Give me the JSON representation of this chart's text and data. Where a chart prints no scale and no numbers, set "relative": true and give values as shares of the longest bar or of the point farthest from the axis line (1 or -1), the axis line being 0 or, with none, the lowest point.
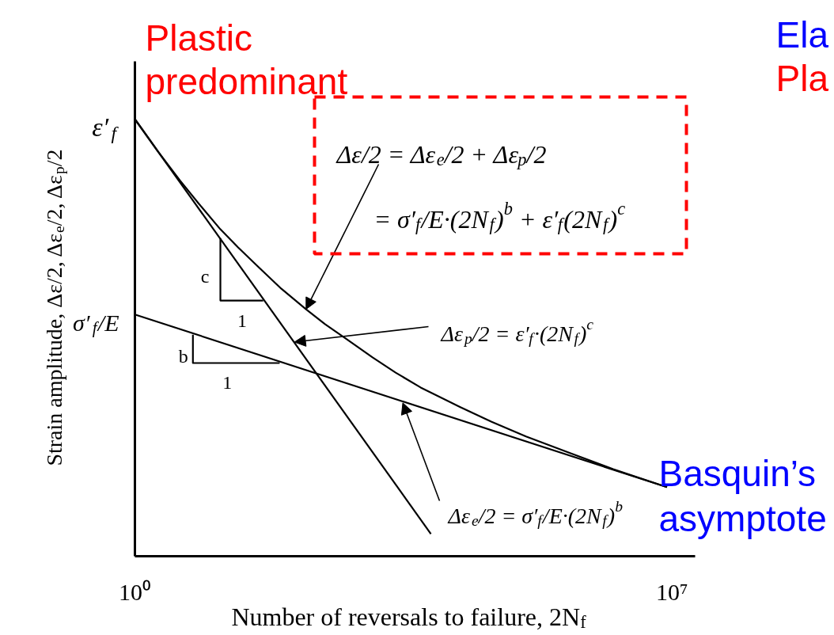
{
  "chart_data": {
    "type": "line",
    "relative": true,
    "log": "x",
    "xlabel": "Number of reversals to failure, 2N$_{f}$",
    "ylabel": "Strain amplitude, Δε/2, Δε$_{e}$/2, Δε$_{p}$/2",
    "xlim": [
      1,
      20000000
    ],
    "xticks": [
      {
        "value": 1,
        "label": "10⁰"
      },
      {
        "value": 10000000,
        "label": "10⁷"
      }
    ],
    "series": [
      {
        "color": "#000000",
        "x": [
          1,
          7200
        ],
        "values": [
          1.0,
          0.051
        ]
      },
      {
        "color": "#000000",
        "x": [
          1,
          8600000
        ],
        "values": [
          0.553,
          0.158
        ]
      },
      {
        "color": "#000000",
        "x": [
          1,
          2,
          3.9,
          6.7,
          13,
          22,
          40,
          81,
          170,
          300,
          580,
          1250,
          2500,
          5300,
          17000,
          44000,
          125000,
          470000,
          1710000,
          8600000
        ],
        "values": [
          1.0,
          0.926,
          0.859,
          0.808,
          0.748,
          0.707,
          0.663,
          0.612,
          0.565,
          0.531,
          0.496,
          0.455,
          0.42,
          0.386,
          0.342,
          0.308,
          0.274,
          0.236,
          0.199,
          0.158
        ]
      },
      {
        "color": "#000000",
        "x": [
          13,
          13,
          47
        ],
        "values": [
          0.728,
          0.585,
          0.585
        ]
      },
      {
        "color": "#000000",
        "x": [
          5.7,
          5.7,
          77
        ],
        "values": [
          0.507,
          0.442,
          0.442
        ]
      }
    ],
    "annotations": [
      "Plastic predominant",
      "Ela",
      "Pla",
      "Basquin’s asymptote",
      {
        "text": "Δε/2 = Δε$_{e}$/2 + Δε$_{p}$/2",
        "x": 170,
        "y": 0.565
      },
      "= σ′$_{f}$/E·(2N$_{f}$)$^{b}$ + ε′$_{f}$(2N$_{f}$)$^{c}$",
      {
        "text": "Δε$_{p}$/2 = ε′$_{f}$·(2N$_{f}$)$^{c}$",
        "x": 120,
        "y": 0.49
      },
      {
        "text": "Δε$_{e}$/2 = σ′$_{f}$/E·(2N$_{f}$)$^{b}$",
        "x": 3100,
        "y": 0.351
      },
      {
        "text": "ε′$_{f}$",
        "x": 1,
        "y": 1.0
      },
      {
        "text": "σ′$_{f}$/E",
        "x": 1,
        "y": 0.553
      },
      {
        "text": "c",
        "x": 13,
        "y": 0.657
      },
      {
        "text": "1",
        "x": 25,
        "y": 0.585
      },
      {
        "text": "b",
        "x": 5.7,
        "y": 0.475
      },
      {
        "text": "1",
        "x": 16,
        "y": 0.442
      }
    ]
  }
}
